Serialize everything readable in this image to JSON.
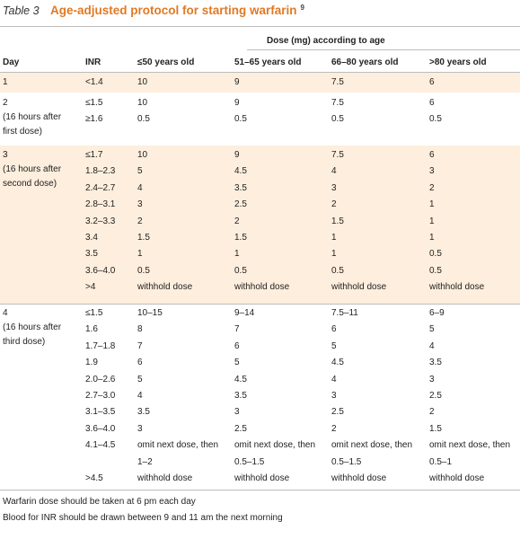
{
  "table_label": "Table 3",
  "title": "Age-adjusted protocol for starting warfarin",
  "title_ref": "9",
  "dose_header": "Dose (mg) according to age",
  "columns": [
    "Day",
    "INR",
    "≤50 years old",
    "51–65 years old",
    "66–80 years old",
    ">80 years old"
  ],
  "day1": {
    "day": "1",
    "rows": [
      [
        "<1.4",
        "10",
        "9",
        "7.5",
        "6"
      ]
    ]
  },
  "day2": {
    "day": "2",
    "note": "(16 hours after first dose)",
    "rows": [
      [
        "≤1.5",
        "10",
        "9",
        "7.5",
        "6"
      ],
      [
        "≥1.6",
        "0.5",
        "0.5",
        "0.5",
        "0.5"
      ]
    ]
  },
  "day3": {
    "day": "3",
    "note": "(16 hours after second dose)",
    "rows": [
      [
        "≤1.7",
        "10",
        "9",
        "7.5",
        "6"
      ],
      [
        "1.8–2.3",
        "5",
        "4.5",
        "4",
        "3"
      ],
      [
        "2.4–2.7",
        "4",
        "3.5",
        "3",
        "2"
      ],
      [
        "2.8–3.1",
        "3",
        "2.5",
        "2",
        "1"
      ],
      [
        "3.2–3.3",
        "2",
        "2",
        "1.5",
        "1"
      ],
      [
        "3.4",
        "1.5",
        "1.5",
        "1",
        "1"
      ],
      [
        "3.5",
        "1",
        "1",
        "1",
        "0.5"
      ],
      [
        "3.6–4.0",
        "0.5",
        "0.5",
        "0.5",
        "0.5"
      ],
      [
        ">4",
        "withhold dose",
        "withhold dose",
        "withhold dose",
        "withhold dose"
      ]
    ]
  },
  "day4": {
    "day": "4",
    "note": "(16 hours after third dose)",
    "rows": [
      [
        "≤1.5",
        "10–15",
        "9–14",
        "7.5–11",
        "6–9"
      ],
      [
        "1.6",
        "8",
        "7",
        "6",
        "5"
      ],
      [
        "1.7–1.8",
        "7",
        "6",
        "5",
        "4"
      ],
      [
        "1.9",
        "6",
        "5",
        "4.5",
        "3.5"
      ],
      [
        "2.0–2.6",
        "5",
        "4.5",
        "4",
        "3"
      ],
      [
        "2.7–3.0",
        "4",
        "3.5",
        "3",
        "2.5"
      ],
      [
        "3.1–3.5",
        "3.5",
        "3",
        "2.5",
        "2"
      ],
      [
        "3.6–4.0",
        "3",
        "2.5",
        "2",
        "1.5"
      ],
      [
        "4.1–4.5",
        "omit next dose, then",
        "omit next dose, then",
        "omit next dose, then",
        "omit next dose, then"
      ],
      [
        "",
        "1–2",
        "0.5–1.5",
        "0.5–1.5",
        "0.5–1"
      ],
      [
        ">4.5",
        "withhold dose",
        "withhold dose",
        "withhold dose",
        "withhold dose"
      ]
    ]
  },
  "footer": [
    "Warfarin dose should be taken at 6 pm each day",
    "Blood for INR should be drawn between 9 and 11 am the next morning"
  ]
}
